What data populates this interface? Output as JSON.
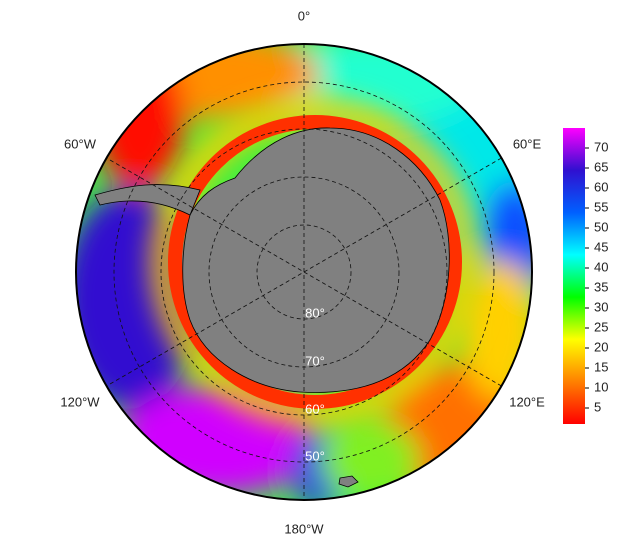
{
  "map": {
    "longitude_labels": [
      "0°",
      "60°E",
      "120°E",
      "180°W",
      "120°W",
      "60°W"
    ],
    "latitude_labels": [
      "80°",
      "70°",
      "60°",
      "50°"
    ],
    "colorbar": {
      "range": [
        1,
        75
      ],
      "ticks": [
        5,
        10,
        15,
        20,
        25,
        30,
        35,
        40,
        45,
        50,
        55,
        60,
        65,
        70
      ],
      "colors": [
        "#ff0000",
        "#ff8000",
        "#ffff00",
        "#00ff00",
        "#00ffff",
        "#0060ff",
        "#3010d0",
        "#ff00ff"
      ]
    }
  }
}
